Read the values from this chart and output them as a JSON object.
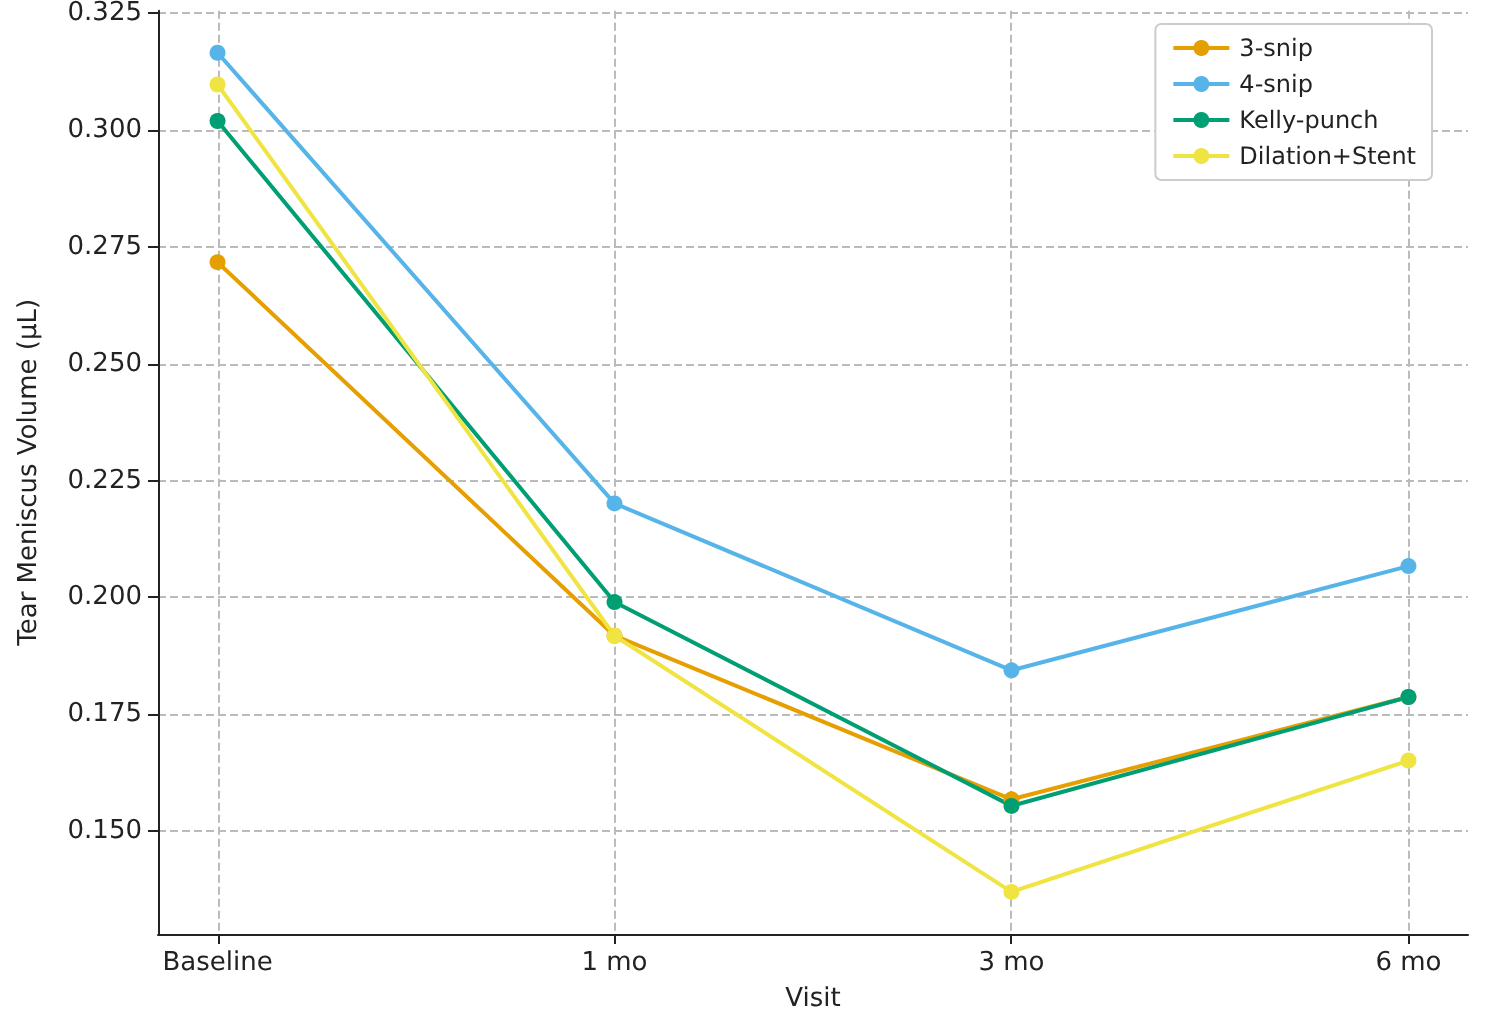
{
  "chart_data": {
    "type": "line",
    "xlabel": "Visit",
    "ylabel": "Tear Meniscus Volume (µL)",
    "categories": [
      "Baseline",
      "1 mo",
      "3 mo",
      "6 mo"
    ],
    "series": [
      {
        "name": "3-snip",
        "color": "#e69f00",
        "values": [
          0.2717,
          0.1918,
          0.1568,
          0.1787
        ]
      },
      {
        "name": "4-snip",
        "color": "#56b4e9",
        "values": [
          0.3165,
          0.2201,
          0.1844,
          0.2067
        ]
      },
      {
        "name": "Kelly-punch",
        "color": "#009e73",
        "values": [
          0.3019,
          0.199,
          0.1554,
          0.1787
        ]
      },
      {
        "name": "Dilation+Stent",
        "color": "#f0e442",
        "values": [
          0.3097,
          0.1918,
          0.137,
          0.1651
        ]
      }
    ],
    "ylim": [
      0.128,
      0.3255
    ],
    "yticks": [
      {
        "value": 0.15,
        "label": "0.150"
      },
      0.175,
      {
        "value": 0.2,
        "label": "0.200"
      },
      0.225,
      {
        "value": 0.25,
        "label": "0.250"
      },
      0.275,
      {
        "value": 0.3,
        "label": "0.300"
      },
      0.325
    ],
    "grid": true,
    "legend": "top right",
    "marker": "circle",
    "line_style": "solid"
  }
}
